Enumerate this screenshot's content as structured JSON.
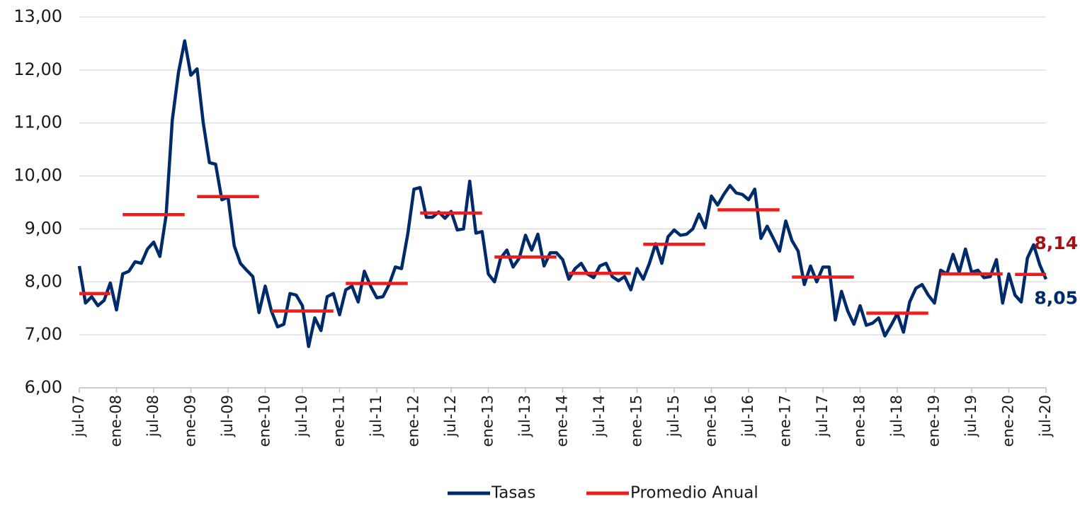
{
  "chart_data": {
    "type": "line",
    "categories": [
      "jul-07",
      null,
      null,
      null,
      null,
      null,
      "ene-08",
      null,
      null,
      null,
      null,
      null,
      "jul-08",
      null,
      null,
      null,
      null,
      null,
      "ene-09",
      null,
      null,
      null,
      null,
      null,
      "jul-09",
      null,
      null,
      null,
      null,
      null,
      "ene-10",
      null,
      null,
      null,
      null,
      null,
      "jul-10",
      null,
      null,
      null,
      null,
      null,
      "ene-11",
      null,
      null,
      null,
      null,
      null,
      "jul-11",
      null,
      null,
      null,
      null,
      null,
      "ene-12",
      null,
      null,
      null,
      null,
      null,
      "jul-12",
      null,
      null,
      null,
      null,
      null,
      "ene-13",
      null,
      null,
      null,
      null,
      null,
      "jul-13",
      null,
      null,
      null,
      null,
      null,
      "ene-14",
      null,
      null,
      null,
      null,
      null,
      "jul-14",
      null,
      null,
      null,
      null,
      null,
      "ene-15",
      null,
      null,
      null,
      null,
      null,
      "jul-15",
      null,
      null,
      null,
      null,
      null,
      "ene-16",
      null,
      null,
      null,
      null,
      null,
      "jul-16",
      null,
      null,
      null,
      null,
      null,
      "ene-17",
      null,
      null,
      null,
      null,
      null,
      "jul-17",
      null,
      null,
      null,
      null,
      null,
      "ene-18",
      null,
      null,
      null,
      null,
      null,
      "jul-18",
      null,
      null,
      null,
      null,
      null,
      "ene-19",
      null,
      null,
      null,
      null,
      null,
      "jul-19",
      null,
      null,
      null,
      null,
      null,
      "ene-20",
      null,
      null,
      null,
      null,
      null,
      "jul-20"
    ],
    "series": [
      {
        "name": "Tasas",
        "color": "#002b6b",
        "values": [
          8.3,
          7.6,
          7.72,
          7.55,
          7.65,
          7.98,
          7.47,
          8.15,
          8.2,
          8.38,
          8.35,
          8.62,
          8.75,
          8.48,
          9.25,
          11.05,
          11.95,
          12.55,
          11.9,
          12.02,
          11.0,
          10.25,
          10.22,
          9.55,
          9.6,
          8.68,
          8.35,
          8.22,
          8.1,
          7.42,
          7.92,
          7.45,
          7.15,
          7.2,
          7.78,
          7.75,
          7.55,
          6.78,
          7.32,
          7.08,
          7.72,
          7.78,
          7.38,
          7.85,
          7.92,
          7.62,
          8.2,
          7.92,
          7.7,
          7.72,
          7.95,
          8.28,
          8.25,
          8.9,
          9.75,
          9.78,
          9.22,
          9.22,
          9.32,
          9.2,
          9.33,
          8.98,
          9.0,
          9.9,
          8.92,
          8.95,
          8.15,
          8.0,
          8.45,
          8.6,
          8.28,
          8.45,
          8.88,
          8.6,
          8.9,
          8.3,
          8.55,
          8.55,
          8.42,
          8.05,
          8.25,
          8.35,
          8.15,
          8.08,
          8.3,
          8.35,
          8.1,
          8.02,
          8.1,
          7.85,
          8.25,
          8.05,
          8.35,
          8.72,
          8.35,
          8.85,
          8.98,
          8.88,
          8.9,
          9.0,
          9.28,
          9.02,
          9.62,
          9.45,
          9.65,
          9.82,
          9.68,
          9.65,
          9.55,
          9.75,
          8.82,
          9.05,
          8.82,
          8.58,
          9.15,
          8.78,
          8.58,
          7.95,
          8.3,
          8.0,
          8.28,
          8.28,
          7.28,
          7.82,
          7.45,
          7.2,
          7.55,
          7.18,
          7.22,
          7.32,
          6.98,
          7.18,
          7.4,
          7.05,
          7.62,
          7.88,
          7.95,
          7.75,
          7.6,
          8.22,
          8.15,
          8.52,
          8.18,
          8.62,
          8.18,
          8.22,
          8.08,
          8.1,
          8.42,
          7.6,
          8.15,
          7.75,
          7.62,
          8.45,
          8.7,
          8.32,
          8.05
        ]
      },
      {
        "name": "Promedio Anual",
        "color": "#ee1c1c",
        "values": [
          7.78,
          7.78,
          7.78,
          7.78,
          7.78,
          7.78,
          null,
          9.27,
          9.27,
          9.27,
          9.27,
          9.27,
          9.27,
          9.27,
          9.27,
          9.27,
          9.27,
          9.27,
          null,
          9.61,
          9.61,
          9.61,
          9.61,
          9.61,
          9.61,
          9.61,
          9.61,
          9.61,
          9.61,
          9.61,
          null,
          7.45,
          7.45,
          7.45,
          7.45,
          7.45,
          7.45,
          7.45,
          7.45,
          7.45,
          7.45,
          7.45,
          null,
          7.97,
          7.97,
          7.97,
          7.97,
          7.97,
          7.97,
          7.97,
          7.97,
          7.97,
          7.97,
          7.97,
          null,
          9.3,
          9.3,
          9.3,
          9.3,
          9.3,
          9.3,
          9.3,
          9.3,
          9.3,
          9.3,
          9.3,
          null,
          8.47,
          8.47,
          8.47,
          8.47,
          8.47,
          8.47,
          8.47,
          8.47,
          8.47,
          8.47,
          8.47,
          null,
          8.16,
          8.16,
          8.16,
          8.16,
          8.16,
          8.16,
          8.16,
          8.16,
          8.16,
          8.16,
          8.16,
          null,
          8.71,
          8.71,
          8.71,
          8.71,
          8.71,
          8.71,
          8.71,
          8.71,
          8.71,
          8.71,
          8.71,
          null,
          9.36,
          9.36,
          9.36,
          9.36,
          9.36,
          9.36,
          9.36,
          9.36,
          9.36,
          9.36,
          9.36,
          null,
          8.09,
          8.09,
          8.09,
          8.09,
          8.09,
          8.09,
          8.09,
          8.09,
          8.09,
          8.09,
          8.09,
          null,
          7.41,
          7.41,
          7.41,
          7.41,
          7.41,
          7.41,
          7.41,
          7.41,
          7.41,
          7.41,
          7.41,
          null,
          8.15,
          8.15,
          8.15,
          8.15,
          8.15,
          8.15,
          8.15,
          8.15,
          8.15,
          8.15,
          8.15,
          null,
          8.14,
          8.14,
          8.14,
          8.14,
          8.14,
          8.14
        ]
      }
    ],
    "annotations": [
      {
        "text": "8,14",
        "value": 8.14,
        "color": "#a50f15"
      },
      {
        "text": "8,05",
        "value": 8.05,
        "color": "#002b6b"
      }
    ],
    "ylim": [
      6,
      13
    ],
    "yticks": [
      {
        "value": 6,
        "label": "6,00"
      },
      {
        "value": 7,
        "label": "7,00"
      },
      {
        "value": 8,
        "label": "8,00"
      },
      {
        "value": 9,
        "label": "9,00"
      },
      {
        "value": 10,
        "label": "10,00"
      },
      {
        "value": 11,
        "label": "11,00"
      },
      {
        "value": 12,
        "label": "12,00"
      },
      {
        "value": 13,
        "label": "13,00"
      }
    ],
    "grid": true,
    "legend": "bottom"
  }
}
